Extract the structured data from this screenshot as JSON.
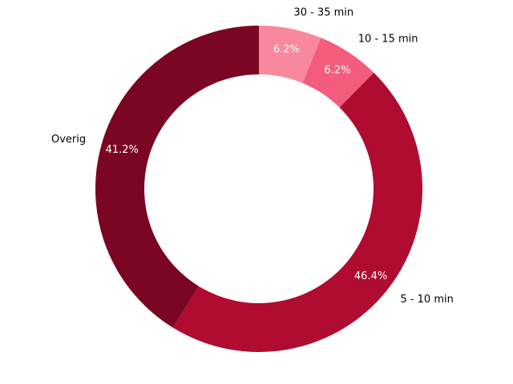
{
  "chart_data": {
    "type": "pie",
    "donut": true,
    "title": "",
    "legend": "none",
    "start": "top",
    "direction": "counterclockwise",
    "slices": [
      {
        "label": "Overig",
        "value": 41.2,
        "pct_label": "41.2%",
        "color": "#7a0622"
      },
      {
        "label": "5 - 10 min",
        "value": 46.4,
        "pct_label": "46.4%",
        "color": "#b00b30"
      },
      {
        "label": "10 - 15 min",
        "value": 6.2,
        "pct_label": "6.2%",
        "color": "#f45c7d"
      },
      {
        "label": "30 - 35 min",
        "value": 6.2,
        "pct_label": "6.2%",
        "color": "#f7889e"
      }
    ]
  }
}
